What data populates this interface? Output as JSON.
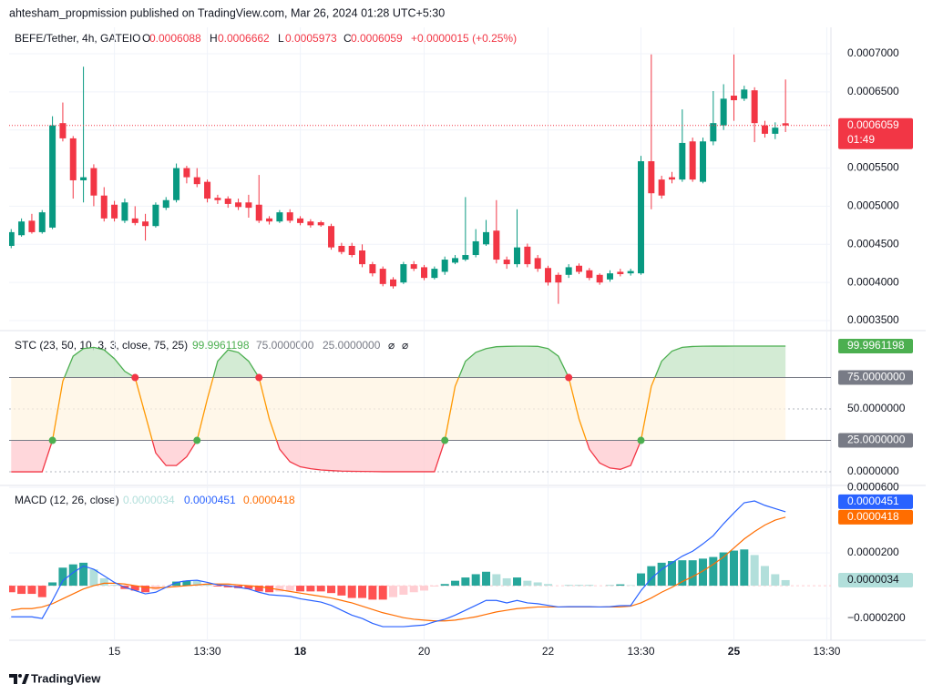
{
  "header": {
    "text": "ahtesham_propmission published on TradingView.com, Mar 26, 2024 01:28 UTC+5:30"
  },
  "footer": {
    "brand": "TradingView"
  },
  "chart_data": [
    {
      "type": "candlestick",
      "title": "BEFE/Tether, 4h, GATEIO",
      "ohlc_labels": [
        "O",
        "H",
        "L",
        "C"
      ],
      "change": "+0.0000015 (+0.25%)",
      "countdown": "01:49",
      "up_color": "#089981",
      "down_color": "#f23645",
      "grid": true,
      "x": [
        0,
        1,
        2,
        3,
        4,
        5,
        6,
        7,
        8,
        9,
        10,
        11,
        12,
        13,
        14,
        15,
        16,
        17,
        18,
        19,
        20,
        21,
        22,
        23,
        24,
        25,
        26,
        27,
        28,
        29,
        30,
        31,
        32,
        33,
        34,
        35,
        36,
        37,
        38,
        39,
        40,
        41,
        42,
        43,
        44,
        45,
        46,
        47,
        48,
        49,
        50,
        51,
        52,
        53,
        54,
        55,
        56,
        57,
        58,
        59,
        60,
        61,
        62,
        63,
        64,
        65,
        66,
        67,
        68,
        69,
        70,
        71,
        72,
        73,
        74,
        75
      ],
      "open": [
        0.000448,
        0.000462,
        0.000481,
        0.000466,
        0.000472,
        0.000609,
        0.000589,
        0.000534,
        0.00055,
        0.000514,
        0.000502,
        0.000481,
        0.000484,
        0.00048,
        0.000474,
        0.000498,
        0.000508,
        0.00055,
        0.000538,
        0.000532,
        0.000511,
        0.00051,
        0.000505,
        0.000505,
        0.000502,
        0.000484,
        0.00048,
        0.000492,
        0.000484,
        0.00048,
        0.000479,
        0.000474,
        0.000448,
        0.000448,
        0.000442,
        0.000424,
        0.000418,
        0.000404,
        0.0004,
        0.000424,
        0.00042,
        0.000406,
        0.000414,
        0.000426,
        0.00043,
        0.000436,
        0.00045,
        0.000468,
        0.00043,
        0.000424,
        0.000447,
        0.000432,
        0.000419,
        0.00041,
        0.00041,
        0.000422,
        0.000416,
        0.00041,
        0.000404,
        0.000414,
        0.000412,
        0.000412,
        0.000559,
        0.000535,
        0.000538,
        0.000535,
        0.000585,
        0.000532,
        0.000585,
        0.000606,
        0.000645,
        0.000641,
        0.000652,
        0.000606,
        0.000595,
        0.0006088
      ],
      "high": [
        0.00047,
        0.000484,
        0.00049,
        0.000495,
        0.000618,
        0.000636,
        0.000592,
        0.000683,
        0.000555,
        0.000525,
        0.000507,
        0.00051,
        0.0005,
        0.00049,
        0.000505,
        0.000512,
        0.000556,
        0.000553,
        0.00055,
        0.000535,
        0.000515,
        0.000513,
        0.00051,
        0.000515,
        0.000541,
        0.000487,
        0.000495,
        0.000496,
        0.000487,
        0.000483,
        0.000481,
        0.000477,
        0.000452,
        0.000452,
        0.00045,
        0.000427,
        0.000421,
        0.000407,
        0.000427,
        0.000428,
        0.000423,
        0.000421,
        0.000434,
        0.000436,
        0.000512,
        0.00047,
        0.000482,
        0.000508,
        0.000434,
        0.000496,
        0.000451,
        0.000436,
        0.000422,
        0.000413,
        0.000424,
        0.000425,
        0.000419,
        0.000412,
        0.000416,
        0.000418,
        0.000418,
        0.000566,
        0.000699,
        0.00054,
        0.000545,
        0.000627,
        0.00059,
        0.00059,
        0.000651,
        0.00066,
        0.000699,
        0.000658,
        0.000656,
        0.000612,
        0.00061,
        0.0006662
      ],
      "low": [
        0.000445,
        0.00046,
        0.000464,
        0.000464,
        0.00047,
        0.000585,
        0.00051,
        0.000505,
        0.0005,
        0.00048,
        0.00048,
        0.000478,
        0.000475,
        0.000455,
        0.000472,
        0.000495,
        0.000505,
        0.00053,
        0.000525,
        0.000505,
        0.000503,
        0.000498,
        0.000495,
        0.000485,
        0.000478,
        0.000476,
        0.000478,
        0.000478,
        0.000475,
        0.000472,
        0.000473,
        0.000443,
        0.000437,
        0.000433,
        0.00042,
        0.000408,
        0.000395,
        0.000392,
        0.000398,
        0.000415,
        0.000403,
        0.000404,
        0.00041,
        0.000424,
        0.000428,
        0.000433,
        0.000448,
        0.000425,
        0.000418,
        0.00042,
        0.00042,
        0.000414,
        0.000396,
        0.000372,
        0.000406,
        0.000411,
        0.000403,
        0.000397,
        0.000401,
        0.000408,
        0.000409,
        0.00041,
        0.000496,
        0.00051,
        0.00053,
        0.000532,
        0.000532,
        0.00053,
        0.00058,
        0.0006,
        0.000612,
        0.000638,
        0.000584,
        0.00059,
        0.000588,
        0.0005973
      ],
      "close": [
        0.000466,
        0.00048,
        0.000466,
        0.000492,
        0.000606,
        0.000589,
        0.000534,
        0.000538,
        0.000514,
        0.000484,
        0.000484,
        0.000505,
        0.000478,
        0.000474,
        0.000502,
        0.000508,
        0.00055,
        0.000538,
        0.000529,
        0.00051,
        0.000508,
        0.000503,
        0.000499,
        0.000498,
        0.000481,
        0.00048,
        0.000492,
        0.000481,
        0.000478,
        0.000475,
        0.000475,
        0.000446,
        0.00044,
        0.000436,
        0.000424,
        0.000412,
        0.000398,
        0.000395,
        0.000424,
        0.000418,
        0.000406,
        0.000418,
        0.00043,
        0.000432,
        0.000436,
        0.000454,
        0.000466,
        0.00043,
        0.000424,
        0.000446,
        0.000424,
        0.000418,
        0.0004,
        0.0004,
        0.00042,
        0.000414,
        0.000406,
        0.0004,
        0.000412,
        0.000411,
        0.000415,
        0.000559,
        0.000517,
        0.000514,
        0.000535,
        0.000583,
        0.000535,
        0.000585,
        0.000609,
        0.000641,
        0.000639,
        0.000653,
        0.000609,
        0.000595,
        0.000603,
        0.0006059
      ],
      "xlim": [
        -0.2,
        79.4
      ],
      "xticks": [
        {
          "value": 10,
          "label": "15"
        },
        {
          "value": 19,
          "label": "13:30"
        },
        {
          "value": 28,
          "label": "18",
          "bold": true
        },
        {
          "value": 40,
          "label": "20"
        },
        {
          "value": 52,
          "label": "22"
        },
        {
          "value": 61,
          "label": "13:30"
        },
        {
          "value": 70,
          "label": "25",
          "bold": true
        },
        {
          "value": 79,
          "label": "13:30"
        }
      ],
      "ylim": [
        0.0003381,
        0.0007346
      ],
      "yticks": [
        {
          "value": 0.00035,
          "label": "0.0003500"
        },
        {
          "value": 0.0004,
          "label": "0.0004000"
        },
        {
          "value": 0.00045,
          "label": "0.0004500"
        },
        {
          "value": 0.0005,
          "label": "0.0005000"
        },
        {
          "value": 0.00055,
          "label": "0.0005500"
        },
        {
          "value": 0.0006,
          "label": "0.0006000"
        },
        {
          "value": 0.00065,
          "label": "0.0006500"
        },
        {
          "value": 0.0007,
          "label": "0.0007000"
        }
      ]
    },
    {
      "type": "stc",
      "title": "STC (23, 50, 10, 3, 3, close, 75, 25)",
      "na_labels": [
        "⌀",
        "⌀"
      ],
      "colors": {
        "above": "#4caf50",
        "between": "#ff9800",
        "below": "#f23645",
        "fill_above": "#c8e6c9",
        "fill_below": "#ffcdd2",
        "band": "#fff3e0",
        "threshold": "#787b86"
      },
      "values": [
        0,
        0,
        0,
        0,
        25,
        72,
        92,
        98,
        99,
        97,
        90,
        80,
        75,
        45,
        15,
        5,
        5,
        12,
        25,
        58,
        88,
        97,
        95,
        88,
        75,
        42,
        18,
        8,
        4,
        2.5,
        1.5,
        1,
        0.6,
        0.4,
        0.3,
        0.2,
        0.1,
        0.1,
        0.1,
        0.1,
        0.1,
        0.1,
        25,
        68,
        88,
        95,
        98,
        99.5,
        99.8,
        99.9,
        99.9,
        99.8,
        98,
        92,
        75,
        42,
        18,
        7,
        3,
        2,
        5,
        25,
        68,
        88,
        96,
        99,
        99.7,
        99.9,
        99.95,
        99.98,
        99.99,
        99.99,
        99.995,
        99.996,
        99.996,
        99.9961198
      ],
      "thresholds": [
        {
          "value": 75,
          "label": "75.0000000"
        },
        {
          "value": 25,
          "label": "25.0000000"
        }
      ],
      "ylim": [
        -10.1,
        111.6
      ],
      "yticks": [
        {
          "value": 0,
          "label": "0.0000000"
        },
        {
          "value": 50,
          "label": "50.0000000"
        }
      ],
      "grid_style": "dashed"
    },
    {
      "type": "macd",
      "title": "MACD (12, 26, close)",
      "grid": true,
      "histogram": {
        "colors": {
          "up_rising": "#26a69a",
          "up_falling": "#b2dfdb",
          "down_falling": "#ff5252",
          "down_rising": "#ffcdd2"
        },
        "values": [
          -4e-06,
          -5e-06,
          -5e-06,
          -7e-06,
          2e-06,
          1.1e-05,
          1.3e-05,
          1.4e-05,
          1e-05,
          4.5e-06,
          5e-07,
          -2e-06,
          -3e-06,
          -4e-06,
          -2.5e-06,
          0,
          2.5e-06,
          3e-06,
          2.8e-06,
          1e-06,
          -5e-07,
          -1e-06,
          -1.5e-06,
          -2e-06,
          -3.5e-06,
          -4e-06,
          -3.5e-06,
          -3e-06,
          -3.5e-06,
          -3.5e-06,
          -3.5e-06,
          -4.5e-06,
          -6e-06,
          -7.5e-06,
          -7.5e-06,
          -8.5e-06,
          -8.5e-06,
          -7e-06,
          -5.5e-06,
          -4e-06,
          -3e-06,
          -5e-07,
          1e-06,
          3e-06,
          5e-06,
          7e-06,
          8.5e-06,
          7e-06,
          4.5e-06,
          5e-06,
          3e-06,
          2e-06,
          1e-06,
          0,
          2e-07,
          2e-07,
          2e-07,
          0,
          2e-07,
          8e-07,
          3e-07,
          7.5e-06,
          1.19e-05,
          1.4e-05,
          1.5e-05,
          1.55e-05,
          1.55e-05,
          1.65e-05,
          1.75e-05,
          2.03e-05,
          2.14e-05,
          2.21e-05,
          1.87e-05,
          1.2e-05,
          7e-06,
          3.4e-06
        ]
      },
      "macd": {
        "color": "#2962ff",
        "values": [
          -1.9e-05,
          -1.9e-05,
          -1.9e-05,
          -2e-05,
          -9e-06,
          3e-06,
          8e-06,
          1.2e-05,
          1e-05,
          6e-06,
          2e-06,
          -1e-06,
          -3e-06,
          -5e-06,
          -4e-06,
          -1e-06,
          2e-06,
          3e-06,
          3.3e-06,
          2e-06,
          5e-07,
          0,
          -1e-06,
          -2e-06,
          -4e-06,
          -5.5e-06,
          -6e-06,
          -6.5e-06,
          -8e-06,
          -9e-06,
          -1e-05,
          -1.2e-05,
          -1.5e-05,
          -1.8e-05,
          -2e-05,
          -2.3e-05,
          -2.5e-05,
          -2.5e-05,
          -2.5e-05,
          -2.45e-05,
          -2.4e-05,
          -2.2e-05,
          -2.05e-05,
          -1.8e-05,
          -1.5e-05,
          -1.2e-05,
          -9e-06,
          -9e-06,
          -1.05e-05,
          -9e-06,
          -1.05e-05,
          -1.1e-05,
          -1.2e-05,
          -1.3e-05,
          -1.28e-05,
          -1.28e-05,
          -1.28e-05,
          -1.3e-05,
          -1.28e-05,
          -1.22e-05,
          -1.22e-05,
          -3e-06,
          4.4e-06,
          1e-05,
          1.4e-05,
          1.8e-05,
          2.1e-05,
          2.55e-05,
          3.05e-05,
          3.78e-05,
          4.44e-05,
          5.06e-05,
          5.17e-05,
          4.9e-05,
          4.7e-05,
          4.51e-05
        ]
      },
      "signal": {
        "color": "#ff6d00",
        "values": [
          -1.5e-05,
          -1.4e-05,
          -1.4e-05,
          -1.3e-05,
          -1.1e-05,
          -8e-06,
          -5e-06,
          -2e-06,
          0,
          1.5e-06,
          1.5e-06,
          1e-06,
          0,
          -1e-06,
          -1.5e-06,
          -1e-06,
          -5e-07,
          0,
          5e-07,
          1e-06,
          1e-06,
          1e-06,
          5e-07,
          0,
          -5e-07,
          -1.5e-06,
          -2.5e-06,
          -3.5e-06,
          -4.5e-06,
          -5.5e-06,
          -6.5e-06,
          -7.5e-06,
          -9e-06,
          -1.05e-05,
          -1.25e-05,
          -1.45e-05,
          -1.65e-05,
          -1.8e-05,
          -1.95e-05,
          -2.05e-05,
          -2.1e-05,
          -2.15e-05,
          -2.15e-05,
          -2.1e-05,
          -2e-05,
          -1.9e-05,
          -1.75e-05,
          -1.6e-05,
          -1.5e-05,
          -1.4e-05,
          -1.35e-05,
          -1.3e-05,
          -1.3e-05,
          -1.3e-05,
          -1.3e-05,
          -1.3e-05,
          -1.3e-05,
          -1.3e-05,
          -1.3e-05,
          -1.3e-05,
          -1.25e-05,
          -1.05e-05,
          -7.5e-06,
          -4e-06,
          -1e-06,
          2.5e-06,
          5.5e-06,
          9e-06,
          1.3e-05,
          1.75e-05,
          2.3e-05,
          2.85e-05,
          3.3e-05,
          3.7e-05,
          4e-05,
          4.18e-05
        ]
      },
      "ylim": [
        -3.33e-05,
        6.06e-05
      ],
      "yticks": [
        {
          "value": -2e-05,
          "label": "−0.0000200"
        },
        {
          "value": 2e-05,
          "label": "0.0000200"
        },
        {
          "value": 6e-05,
          "label": "0.0000600"
        }
      ]
    }
  ]
}
